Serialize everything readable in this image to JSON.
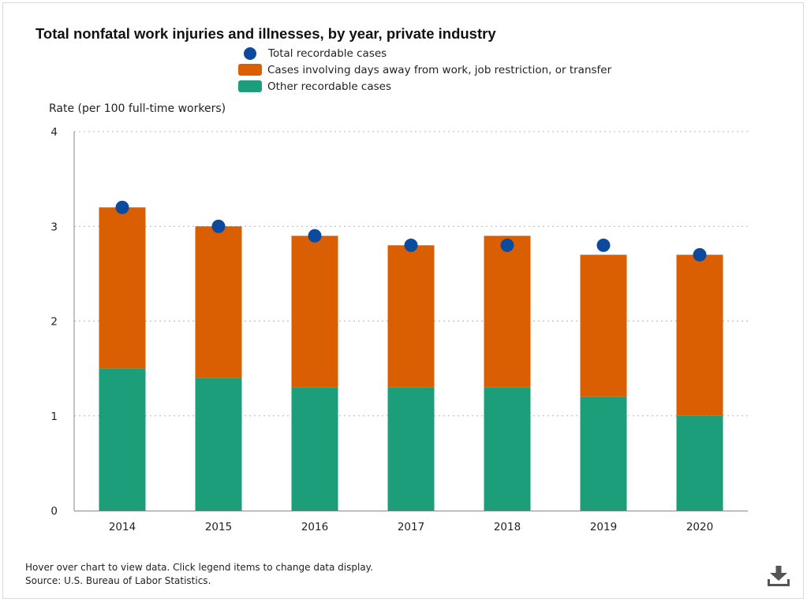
{
  "chart_data": {
    "type": "bar",
    "stacked": true,
    "title": "Total nonfatal work injuries and illnesses, by year, private industry",
    "ylabel": "Rate (per 100 full-time workers)",
    "xlabel": "",
    "ylim": [
      0,
      4
    ],
    "yticks": [
      0,
      1,
      2,
      3,
      4
    ],
    "grid": true,
    "categories": [
      "2014",
      "2015",
      "2016",
      "2017",
      "2018",
      "2019",
      "2020"
    ],
    "series": [
      {
        "name": "Other recordable cases",
        "kind": "bar",
        "color": "#1d9e7a",
        "values": [
          1.5,
          1.4,
          1.3,
          1.3,
          1.3,
          1.2,
          1.0
        ]
      },
      {
        "name": "Cases involving days away from work, job restriction, or transfer",
        "kind": "bar",
        "color": "#d95f02",
        "values": [
          1.7,
          1.6,
          1.6,
          1.5,
          1.6,
          1.5,
          1.7
        ]
      },
      {
        "name": "Total recordable cases",
        "kind": "point",
        "color": "#0b4a9c",
        "values": [
          3.2,
          3.0,
          2.9,
          2.8,
          2.8,
          2.8,
          2.7
        ]
      }
    ],
    "legend": [
      {
        "label": "Total recordable cases",
        "color": "#0b4a9c",
        "shape": "circle"
      },
      {
        "label": "Cases involving days away from work, job restriction, or transfer",
        "color": "#d95f02",
        "shape": "rect"
      },
      {
        "label": "Other recordable cases",
        "color": "#1d9e7a",
        "shape": "rect"
      }
    ],
    "legend_position": "top"
  },
  "footer": {
    "line1": "Hover over chart to view data. Click legend items to change data display.",
    "line2": "Source: U.S. Bureau of Labor Statistics."
  },
  "icons": {
    "download": "download-icon"
  }
}
